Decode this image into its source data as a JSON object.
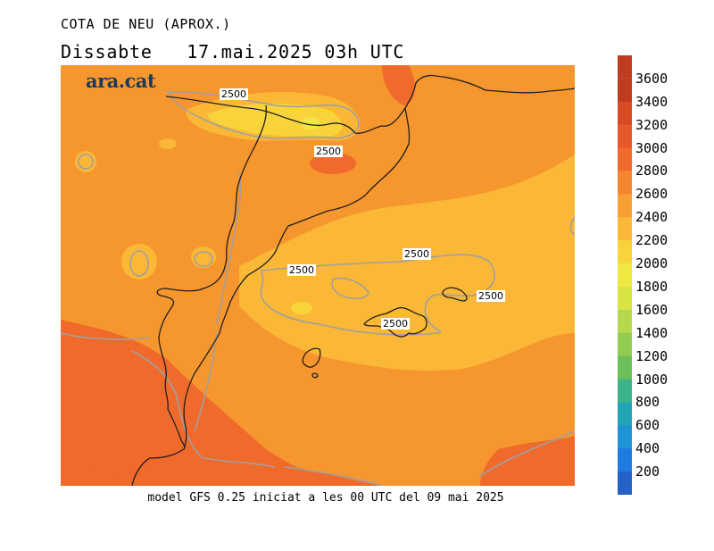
{
  "title_line1": "COTA DE NEU (APROX.)",
  "title_day": "Dissabte",
  "title_datetime": "17.mai.2025 03h UTC",
  "logo_text": "ara.cat",
  "footer_text": "model GFS 0.25 iniciat a les 00 UTC del 09 mai 2025",
  "contour_value": "2500",
  "colorbar": {
    "labels": [
      "3600",
      "3400",
      "3200",
      "3000",
      "2800",
      "2600",
      "2400",
      "2200",
      "2000",
      "1800",
      "1600",
      "1400",
      "1200",
      "1000",
      "800",
      "600",
      "400",
      "200"
    ],
    "colors": [
      "#c03c20",
      "#d84a22",
      "#e8582a",
      "#f06a2c",
      "#f6862e",
      "#f89e32",
      "#fab836",
      "#f8d43a",
      "#f0e840",
      "#d8e442",
      "#b6d84c",
      "#92cc50",
      "#6cc05a",
      "#3cb48a",
      "#22a4b4",
      "#1e94d8",
      "#1e7ce0",
      "#2462c8"
    ]
  },
  "colors": {
    "orange_base": "#f6962e",
    "orange_dark": "#f06a2c",
    "yellow_light": "#fab836",
    "yellow_pale": "#f8d43a",
    "contour": "#a0a0a0",
    "coast": "#202020"
  }
}
